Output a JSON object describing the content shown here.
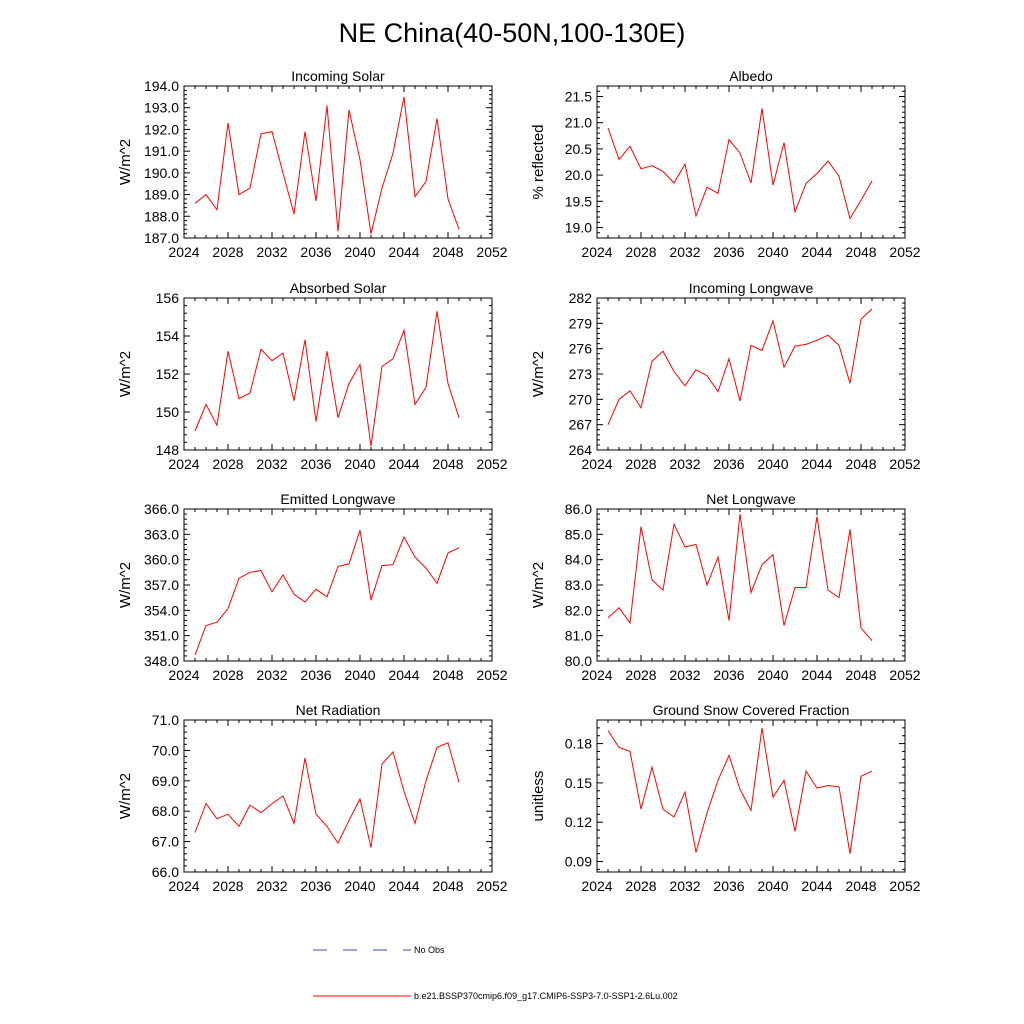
{
  "figure": {
    "title": "NE China(40-50N,100-130E)"
  },
  "legend": {
    "entries": [
      {
        "label": "No Obs",
        "color": "#3b4cc0",
        "style": "dashed"
      },
      {
        "label": "b.e21.BSSP370cmip6.f09_g17.CMIP6-SSP3-7.0-SSP1-2.6Lu.002",
        "color": "#ff0000",
        "style": "solid"
      }
    ]
  },
  "colors": {
    "series": "#ff0000",
    "axis": "#000000"
  },
  "chart_data": [
    {
      "type": "line",
      "title": "Incoming Solar",
      "ylabel": "W/m^2",
      "xlim": [
        2024,
        2052
      ],
      "xticks": [
        "2024",
        "2028",
        "2032",
        "2036",
        "2040",
        "2044",
        "2048",
        "2052"
      ],
      "ylim": [
        187.0,
        194.0
      ],
      "yticks": [
        "187.0",
        "188.0",
        "189.0",
        "190.0",
        "191.0",
        "192.0",
        "193.0",
        "194.0"
      ],
      "grid": false,
      "series": [
        {
          "name": "b.e21.BSSP370cmip6.f09_g17.CMIP6-SSP3-7.0-SSP1-2.6Lu.002",
          "x": [
            2025,
            2026,
            2027,
            2028,
            2029,
            2030,
            2031,
            2032,
            2033,
            2034,
            2035,
            2036,
            2037,
            2038,
            2039,
            2040,
            2041,
            2042,
            2043,
            2044,
            2045,
            2046,
            2047,
            2048,
            2049
          ],
          "values": [
            188.6,
            189.0,
            188.3,
            192.3,
            189.0,
            189.3,
            191.8,
            191.9,
            190.0,
            188.1,
            191.9,
            188.7,
            193.1,
            187.3,
            192.9,
            190.6,
            187.2,
            189.3,
            190.9,
            193.5,
            188.9,
            189.6,
            192.5,
            188.8,
            187.4
          ]
        }
      ]
    },
    {
      "type": "line",
      "title": "Albedo",
      "ylabel": "% reflected",
      "xlim": [
        2024,
        2052
      ],
      "xticks": [
        "2024",
        "2028",
        "2032",
        "2036",
        "2040",
        "2044",
        "2048",
        "2052"
      ],
      "ylim": [
        18.8,
        21.7
      ],
      "yticks": [
        "19.0",
        "19.5",
        "20.0",
        "20.5",
        "21.0",
        "21.5"
      ],
      "grid": false,
      "series": [
        {
          "name": "b.e21.BSSP370cmip6.f09_g17.CMIP6-SSP3-7.0-SSP1-2.6Lu.002",
          "x": [
            2025,
            2026,
            2027,
            2028,
            2029,
            2030,
            2031,
            2032,
            2033,
            2034,
            2035,
            2036,
            2037,
            2038,
            2039,
            2040,
            2041,
            2042,
            2043,
            2044,
            2045,
            2046,
            2047,
            2048,
            2049
          ],
          "values": [
            20.9,
            20.3,
            20.55,
            20.12,
            20.18,
            20.07,
            19.85,
            20.21,
            19.22,
            19.77,
            19.65,
            20.68,
            20.42,
            19.85,
            21.27,
            19.81,
            20.62,
            19.3,
            19.84,
            20.03,
            20.27,
            19.98,
            19.17,
            19.52,
            19.89
          ]
        }
      ]
    },
    {
      "type": "line",
      "title": "Absorbed Solar",
      "ylabel": "W/m^2",
      "xlim": [
        2024,
        2052
      ],
      "xticks": [
        "2024",
        "2028",
        "2032",
        "2036",
        "2040",
        "2044",
        "2048",
        "2052"
      ],
      "ylim": [
        148,
        156
      ],
      "yticks": [
        "148",
        "150",
        "152",
        "154",
        "156"
      ],
      "grid": false,
      "series": [
        {
          "name": "b.e21.BSSP370cmip6.f09_g17.CMIP6-SSP3-7.0-SSP1-2.6Lu.002",
          "x": [
            2025,
            2026,
            2027,
            2028,
            2029,
            2030,
            2031,
            2032,
            2033,
            2034,
            2035,
            2036,
            2037,
            2038,
            2039,
            2040,
            2041,
            2042,
            2043,
            2044,
            2045,
            2046,
            2047,
            2048,
            2049
          ],
          "values": [
            149.0,
            150.4,
            149.3,
            153.2,
            150.7,
            151.0,
            153.3,
            152.7,
            153.1,
            150.6,
            153.8,
            149.5,
            153.2,
            149.7,
            151.5,
            152.5,
            148.2,
            152.4,
            152.8,
            154.3,
            150.4,
            151.3,
            155.3,
            151.5,
            149.7
          ]
        }
      ]
    },
    {
      "type": "line",
      "title": "Incoming Longwave",
      "ylabel": "W/m^2",
      "xlim": [
        2024,
        2052
      ],
      "xticks": [
        "2024",
        "2028",
        "2032",
        "2036",
        "2040",
        "2044",
        "2048",
        "2052"
      ],
      "ylim": [
        264,
        282
      ],
      "yticks": [
        "264",
        "267",
        "270",
        "273",
        "276",
        "279",
        "282"
      ],
      "grid": false,
      "series": [
        {
          "name": "b.e21.BSSP370cmip6.f09_g17.CMIP6-SSP3-7.0-SSP1-2.6Lu.002",
          "x": [
            2025,
            2026,
            2027,
            2028,
            2029,
            2030,
            2031,
            2032,
            2033,
            2034,
            2035,
            2036,
            2037,
            2038,
            2039,
            2040,
            2041,
            2042,
            2043,
            2044,
            2045,
            2046,
            2047,
            2048,
            2049
          ],
          "values": [
            267.0,
            270.0,
            271.0,
            269.0,
            274.5,
            275.7,
            273.3,
            271.6,
            273.5,
            272.8,
            270.9,
            274.8,
            269.8,
            276.4,
            275.8,
            279.3,
            273.8,
            276.3,
            276.5,
            277.0,
            277.6,
            276.4,
            271.9,
            279.5,
            280.7
          ]
        }
      ]
    },
    {
      "type": "line",
      "title": "Emitted Longwave",
      "ylabel": "W/m^2",
      "xlim": [
        2024,
        2052
      ],
      "xticks": [
        "2024",
        "2028",
        "2032",
        "2036",
        "2040",
        "2044",
        "2048",
        "2052"
      ],
      "ylim": [
        348.0,
        366.0
      ],
      "yticks": [
        "348.0",
        "351.0",
        "354.0",
        "357.0",
        "360.0",
        "363.0",
        "366.0"
      ],
      "grid": false,
      "series": [
        {
          "name": "b.e21.BSSP370cmip6.f09_g17.CMIP6-SSP3-7.0-SSP1-2.6Lu.002",
          "x": [
            2025,
            2026,
            2027,
            2028,
            2029,
            2030,
            2031,
            2032,
            2033,
            2034,
            2035,
            2036,
            2037,
            2038,
            2039,
            2040,
            2041,
            2042,
            2043,
            2044,
            2045,
            2046,
            2047,
            2048,
            2049
          ],
          "values": [
            348.7,
            352.2,
            352.6,
            354.2,
            357.8,
            358.5,
            358.7,
            356.2,
            358.2,
            355.9,
            355.0,
            356.5,
            355.6,
            359.2,
            359.5,
            363.5,
            355.2,
            359.3,
            359.4,
            362.7,
            360.3,
            359.0,
            357.2,
            360.8,
            361.4
          ]
        }
      ]
    },
    {
      "type": "line",
      "title": "Net Longwave",
      "ylabel": "W/m^2",
      "xlim": [
        2024,
        2052
      ],
      "xticks": [
        "2024",
        "2028",
        "2032",
        "2036",
        "2040",
        "2044",
        "2048",
        "2052"
      ],
      "ylim": [
        80.0,
        86.0
      ],
      "yticks": [
        "80.0",
        "81.0",
        "82.0",
        "83.0",
        "84.0",
        "85.0",
        "86.0"
      ],
      "grid": false,
      "series": [
        {
          "name": "b.e21.BSSP370cmip6.f09_g17.CMIP6-SSP3-7.0-SSP1-2.6Lu.002",
          "x": [
            2025,
            2026,
            2027,
            2028,
            2029,
            2030,
            2031,
            2032,
            2033,
            2034,
            2035,
            2036,
            2037,
            2038,
            2039,
            2040,
            2041,
            2042,
            2043,
            2044,
            2045,
            2046,
            2047,
            2048,
            2049
          ],
          "values": [
            81.7,
            82.1,
            81.5,
            85.3,
            83.2,
            82.8,
            85.4,
            84.5,
            84.6,
            83.0,
            84.1,
            81.6,
            85.8,
            82.7,
            83.8,
            84.2,
            81.4,
            82.9,
            82.9,
            85.7,
            82.8,
            82.5,
            85.2,
            81.3,
            80.8
          ]
        }
      ]
    },
    {
      "type": "line",
      "title": "Net Radiation",
      "ylabel": "W/m^2",
      "xlim": [
        2024,
        2052
      ],
      "xticks": [
        "2024",
        "2028",
        "2032",
        "2036",
        "2040",
        "2044",
        "2048",
        "2052"
      ],
      "ylim": [
        66.0,
        71.0
      ],
      "yticks": [
        "66.0",
        "67.0",
        "68.0",
        "69.0",
        "70.0",
        "71.0"
      ],
      "grid": false,
      "series": [
        {
          "name": "b.e21.BSSP370cmip6.f09_g17.CMIP6-SSP3-7.0-SSP1-2.6Lu.002",
          "x": [
            2025,
            2026,
            2027,
            2028,
            2029,
            2030,
            2031,
            2032,
            2033,
            2034,
            2035,
            2036,
            2037,
            2038,
            2039,
            2040,
            2041,
            2042,
            2043,
            2044,
            2045,
            2046,
            2047,
            2048,
            2049
          ],
          "values": [
            67.3,
            68.25,
            67.75,
            67.9,
            67.5,
            68.2,
            67.95,
            68.25,
            68.5,
            67.6,
            69.75,
            67.9,
            67.5,
            66.95,
            67.7,
            68.4,
            66.8,
            69.55,
            69.95,
            68.65,
            67.6,
            69.0,
            70.1,
            70.25,
            68.95
          ]
        }
      ]
    },
    {
      "type": "line",
      "title": "Ground Snow Covered Fraction",
      "ylabel": "unitless",
      "xlim": [
        2024,
        2052
      ],
      "xticks": [
        "2024",
        "2028",
        "2032",
        "2036",
        "2040",
        "2044",
        "2048",
        "2052"
      ],
      "ylim": [
        0.082,
        0.198
      ],
      "yticks": [
        "0.09",
        "0.12",
        "0.15",
        "0.18"
      ],
      "grid": false,
      "series": [
        {
          "name": "b.e21.BSSP370cmip6.f09_g17.CMIP6-SSP3-7.0-SSP1-2.6Lu.002",
          "x": [
            2025,
            2026,
            2027,
            2028,
            2029,
            2030,
            2031,
            2032,
            2033,
            2034,
            2035,
            2036,
            2037,
            2038,
            2039,
            2040,
            2041,
            2042,
            2043,
            2044,
            2045,
            2046,
            2047,
            2048,
            2049
          ],
          "values": [
            0.19,
            0.177,
            0.174,
            0.13,
            0.162,
            0.13,
            0.124,
            0.143,
            0.097,
            0.127,
            0.152,
            0.171,
            0.145,
            0.129,
            0.192,
            0.139,
            0.152,
            0.113,
            0.159,
            0.146,
            0.148,
            0.147,
            0.096,
            0.155,
            0.159
          ]
        }
      ]
    }
  ]
}
